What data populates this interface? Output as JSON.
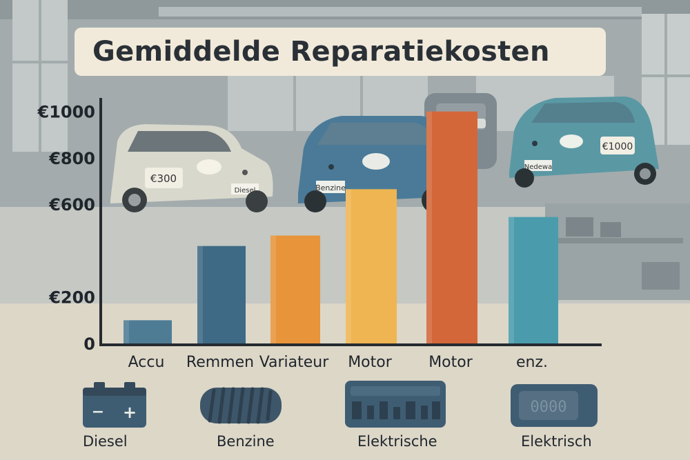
{
  "chart_data": {
    "type": "bar",
    "title": "Gemiddelde Reparatiekosten",
    "xlabel": "",
    "ylabel": "",
    "categories": [
      "Accu",
      "Remmen",
      "Variateur",
      "Motor",
      "Motor",
      "enz."
    ],
    "values": [
      100,
      420,
      465,
      665,
      1000,
      545
    ],
    "colors": [
      "#4e7c95",
      "#3f6a85",
      "#e8943a",
      "#efb552",
      "#d3673a",
      "#4a9cad"
    ],
    "y_ticks": [
      {
        "value": 0,
        "label": "0"
      },
      {
        "value": 200,
        "label": "€200"
      },
      {
        "value": 600,
        "label": "€600"
      },
      {
        "value": 800,
        "label": "€800"
      },
      {
        "value": 1000,
        "label": "€1000"
      }
    ],
    "ylim": [
      0,
      1100
    ],
    "grid": false,
    "legend": "none"
  },
  "icons": [
    {
      "name": "battery-icon",
      "label": "Diesel"
    },
    {
      "name": "tire-icon",
      "label": "Benzine"
    },
    {
      "name": "transmission-icon",
      "label": "Elektrische"
    },
    {
      "name": "meter-icon",
      "label": "Elektrisch"
    }
  ],
  "scene": {
    "car_tags": [
      "€300",
      "Benzine",
      "€1000"
    ],
    "plates": [
      "Diesel",
      "Benzine",
      "Nedewa"
    ],
    "meter_digits": "0000",
    "battery_minus": "−",
    "battery_plus": "+"
  },
  "colors": {
    "wall": "#9fa8aa",
    "floor": "#ddd7c8",
    "title_bg": "#f1eadb",
    "car_white": "#d8d8cc",
    "car_blue": "#4a7a98",
    "car_teal": "#5a98a4"
  }
}
